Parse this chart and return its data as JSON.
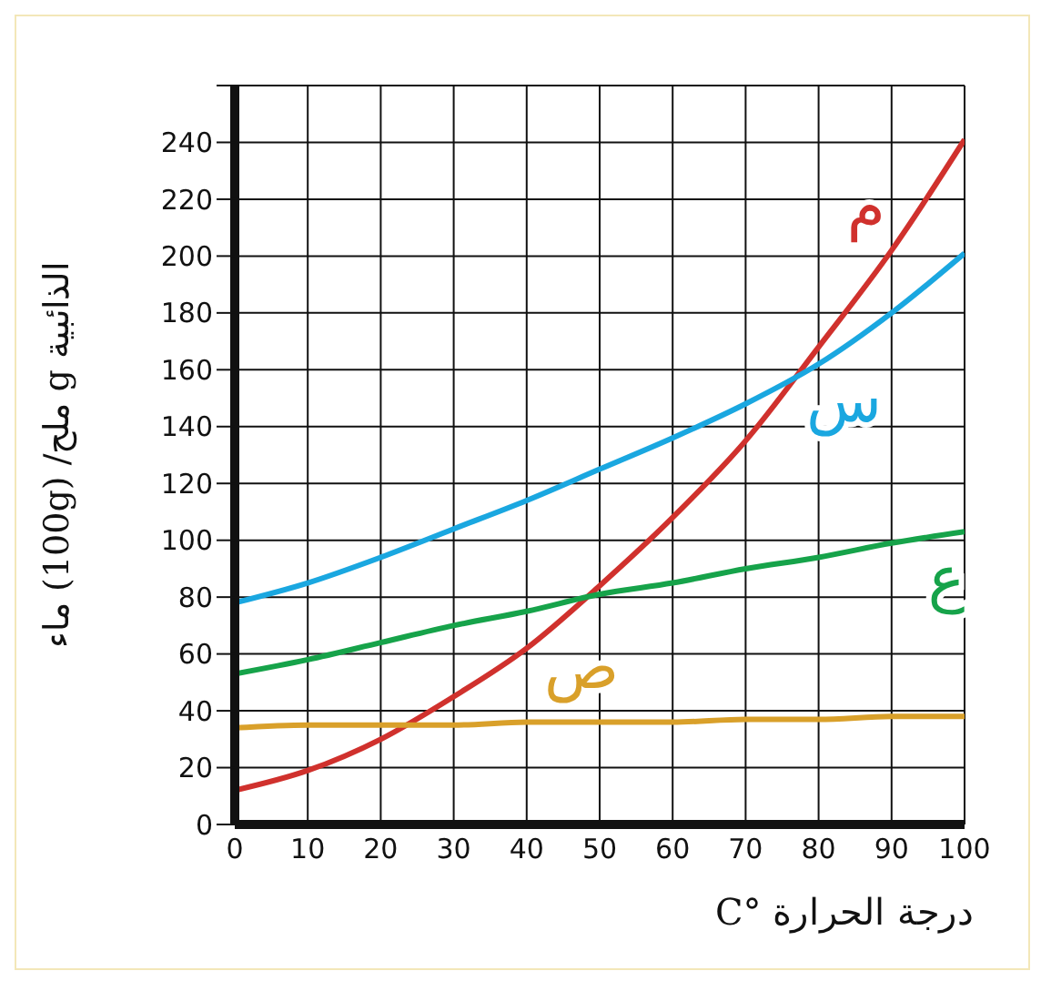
{
  "chart_data": {
    "type": "line",
    "xlabel": "درجة الحرارة °C",
    "ylabel": "الذائبية g ملح/ (100g) ماء",
    "x": [
      0,
      10,
      20,
      30,
      40,
      50,
      60,
      70,
      80,
      90,
      100
    ],
    "series": [
      {
        "name": "م",
        "color": "#d0312d",
        "values": [
          12,
          19,
          30,
          45,
          62,
          84,
          108,
          135,
          168,
          202,
          241
        ]
      },
      {
        "name": "س",
        "color": "#1aa7e0",
        "values": [
          78,
          85,
          94,
          104,
          114,
          125,
          136,
          148,
          162,
          180,
          201
        ]
      },
      {
        "name": "ع",
        "color": "#16a34a",
        "values": [
          53,
          58,
          64,
          70,
          75,
          81,
          85,
          90,
          94,
          99,
          103
        ]
      },
      {
        "name": "ص",
        "color": "#d9a02a",
        "values": [
          34,
          35,
          35,
          35,
          36,
          36,
          36,
          37,
          37,
          38,
          38
        ]
      }
    ],
    "xlim": [
      0,
      100
    ],
    "xticks": [
      0,
      10,
      20,
      30,
      40,
      50,
      60,
      70,
      80,
      90,
      100
    ],
    "ylim": [
      0,
      260
    ],
    "yticks": [
      0,
      20,
      40,
      60,
      80,
      100,
      120,
      140,
      160,
      180,
      200,
      220,
      240,
      {
        "value": 260,
        "label": null
      }
    ],
    "grid": true,
    "marker": "none",
    "line_style": "solid"
  }
}
